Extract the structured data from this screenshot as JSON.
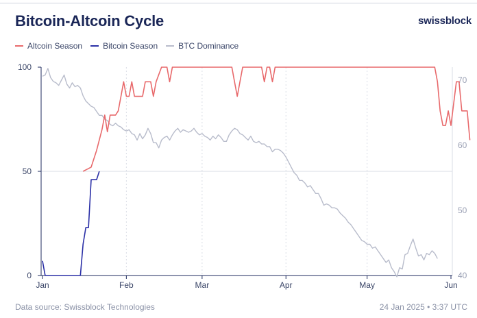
{
  "header": {
    "title": "Bitcoin-Altcoin Cycle",
    "brand": "swissblock"
  },
  "footer": {
    "source": "Data source: Swissblock Technologies",
    "timestamp": "24 Jan 2025 • 3:37 UTC"
  },
  "colors": {
    "altcoin": "#e8696b",
    "bitcoin": "#2a2fa6",
    "dominance": "#b8bccb",
    "grid": "#d9dce4",
    "axis_text": "#3b4668"
  },
  "chart_data": {
    "type": "line",
    "title": "Bitcoin-Altcoin Cycle",
    "x_tick_labels": [
      "Jan",
      "Feb",
      "Mar",
      "Apr",
      "May",
      "Jun"
    ],
    "x_tick_days": [
      0,
      31,
      59,
      90,
      120,
      151
    ],
    "x_range_days": [
      0,
      151
    ],
    "y_left": {
      "range": [
        0,
        100
      ],
      "ticks": [
        0,
        50,
        100
      ]
    },
    "y_right": {
      "range": [
        40,
        72
      ],
      "ticks": [
        40,
        50,
        60,
        70
      ]
    },
    "legend_placement": "top-left",
    "grid": "vertical dashed at month ticks, horizontal at 50",
    "series": [
      {
        "name": "Altcoin Season",
        "axis": "left",
        "points": [
          [
            15,
            50
          ],
          [
            18,
            52
          ],
          [
            20,
            60
          ],
          [
            22,
            70
          ],
          [
            23,
            77
          ],
          [
            24,
            69
          ],
          [
            25,
            77
          ],
          [
            27,
            77
          ],
          [
            28,
            79
          ],
          [
            29,
            86
          ],
          [
            30,
            93
          ],
          [
            31,
            86
          ],
          [
            32,
            86
          ],
          [
            33,
            93
          ],
          [
            34,
            86
          ],
          [
            37,
            86
          ],
          [
            38,
            93
          ],
          [
            40,
            93
          ],
          [
            41,
            86
          ],
          [
            42,
            93
          ],
          [
            44,
            100
          ],
          [
            46,
            100
          ],
          [
            47,
            93
          ],
          [
            48,
            100
          ],
          [
            70,
            100
          ],
          [
            71,
            93
          ],
          [
            72,
            86
          ],
          [
            73,
            93
          ],
          [
            74,
            100
          ],
          [
            81,
            100
          ],
          [
            82,
            93
          ],
          [
            83,
            100
          ],
          [
            84,
            100
          ],
          [
            85,
            93
          ],
          [
            86,
            100
          ],
          [
            145,
            100
          ],
          [
            146,
            93
          ],
          [
            147,
            79
          ],
          [
            148,
            72
          ],
          [
            149,
            72
          ],
          [
            150,
            79
          ],
          [
            151,
            72
          ],
          [
            153,
            93
          ],
          [
            154,
            93
          ],
          [
            155,
            79
          ],
          [
            157,
            79
          ],
          [
            158,
            65
          ]
        ]
      },
      {
        "name": "Bitcoin Season",
        "axis": "left",
        "points": [
          [
            0,
            7
          ],
          [
            1,
            0
          ],
          [
            14,
            0
          ],
          [
            15,
            15
          ],
          [
            16,
            23
          ],
          [
            17,
            23
          ],
          [
            18,
            46
          ],
          [
            20,
            46
          ],
          [
            21,
            50
          ]
        ]
      },
      {
        "name": "BTC Dominance",
        "axis": "right",
        "points": [
          [
            0,
            70.6
          ],
          [
            1,
            70.8
          ],
          [
            2,
            71.8
          ],
          [
            3,
            70.4
          ],
          [
            4,
            69.8
          ],
          [
            5,
            69.6
          ],
          [
            6,
            69.2
          ],
          [
            7,
            70.0
          ],
          [
            8,
            70.8
          ],
          [
            9,
            69.4
          ],
          [
            10,
            68.8
          ],
          [
            11,
            69.6
          ],
          [
            12,
            69.0
          ],
          [
            13,
            69.2
          ],
          [
            14,
            68.8
          ],
          [
            15,
            67.6
          ],
          [
            16,
            66.8
          ],
          [
            17,
            66.4
          ],
          [
            18,
            66.0
          ],
          [
            19,
            65.8
          ],
          [
            20,
            65.2
          ],
          [
            21,
            64.6
          ],
          [
            22,
            64.6
          ],
          [
            23,
            64.0
          ],
          [
            24,
            63.8
          ],
          [
            25,
            63.2
          ],
          [
            26,
            63.0
          ],
          [
            27,
            63.4
          ],
          [
            28,
            63.0
          ],
          [
            29,
            62.8
          ],
          [
            30,
            62.4
          ],
          [
            31,
            62.2
          ],
          [
            32,
            62.4
          ],
          [
            33,
            61.8
          ],
          [
            34,
            61.6
          ],
          [
            35,
            60.8
          ],
          [
            36,
            61.8
          ],
          [
            37,
            61.0
          ],
          [
            38,
            61.6
          ],
          [
            39,
            62.6
          ],
          [
            40,
            61.8
          ],
          [
            41,
            60.4
          ],
          [
            42,
            60.4
          ],
          [
            43,
            59.6
          ],
          [
            44,
            60.8
          ],
          [
            45,
            61.2
          ],
          [
            46,
            61.4
          ],
          [
            47,
            60.8
          ],
          [
            48,
            61.6
          ],
          [
            49,
            62.2
          ],
          [
            50,
            62.6
          ],
          [
            51,
            62.0
          ],
          [
            52,
            62.4
          ],
          [
            53,
            62.2
          ],
          [
            54,
            62.0
          ],
          [
            55,
            62.2
          ],
          [
            56,
            62.6
          ],
          [
            57,
            62.0
          ],
          [
            58,
            61.6
          ],
          [
            59,
            61.8
          ],
          [
            60,
            61.4
          ],
          [
            61,
            61.2
          ],
          [
            62,
            60.8
          ],
          [
            63,
            61.4
          ],
          [
            64,
            61.0
          ],
          [
            65,
            61.6
          ],
          [
            66,
            61.2
          ],
          [
            67,
            60.6
          ],
          [
            68,
            60.6
          ],
          [
            69,
            61.6
          ],
          [
            70,
            62.2
          ],
          [
            71,
            62.6
          ],
          [
            72,
            62.4
          ],
          [
            73,
            61.8
          ],
          [
            74,
            61.6
          ],
          [
            75,
            61.2
          ],
          [
            76,
            60.8
          ],
          [
            77,
            61.4
          ],
          [
            78,
            60.6
          ],
          [
            79,
            60.4
          ],
          [
            80,
            60.6
          ],
          [
            81,
            60.2
          ],
          [
            82,
            60.2
          ],
          [
            83,
            59.8
          ],
          [
            84,
            59.8
          ],
          [
            85,
            59.0
          ],
          [
            86,
            59.4
          ],
          [
            87,
            59.4
          ],
          [
            88,
            59.2
          ],
          [
            89,
            58.8
          ],
          [
            90,
            58.2
          ],
          [
            91,
            57.4
          ],
          [
            92,
            56.6
          ],
          [
            93,
            55.8
          ],
          [
            94,
            55.4
          ],
          [
            95,
            54.6
          ],
          [
            96,
            54.6
          ],
          [
            97,
            54.2
          ],
          [
            98,
            53.6
          ],
          [
            99,
            53.8
          ],
          [
            100,
            53.2
          ],
          [
            101,
            52.6
          ],
          [
            102,
            52.6
          ],
          [
            103,
            51.8
          ],
          [
            104,
            50.8
          ],
          [
            105,
            51.0
          ],
          [
            106,
            50.8
          ],
          [
            107,
            50.4
          ],
          [
            108,
            50.4
          ],
          [
            109,
            50.2
          ],
          [
            110,
            49.6
          ],
          [
            111,
            49.2
          ],
          [
            112,
            48.8
          ],
          [
            113,
            48.2
          ],
          [
            114,
            47.8
          ],
          [
            115,
            47.2
          ],
          [
            116,
            46.6
          ],
          [
            117,
            46.0
          ],
          [
            118,
            45.4
          ],
          [
            119,
            45.2
          ],
          [
            120,
            44.8
          ],
          [
            121,
            44.8
          ],
          [
            122,
            44.2
          ],
          [
            123,
            44.4
          ],
          [
            124,
            43.8
          ],
          [
            125,
            43.2
          ],
          [
            126,
            42.6
          ],
          [
            127,
            42.0
          ],
          [
            128,
            42.4
          ],
          [
            129,
            41.2
          ],
          [
            130,
            40.6
          ],
          [
            131,
            39.8
          ],
          [
            132,
            41.2
          ],
          [
            133,
            41.0
          ],
          [
            134,
            43.2
          ],
          [
            135,
            43.4
          ],
          [
            136,
            44.6
          ],
          [
            137,
            45.6
          ],
          [
            138,
            44.2
          ],
          [
            139,
            43.0
          ],
          [
            140,
            43.2
          ],
          [
            141,
            42.4
          ],
          [
            142,
            43.4
          ],
          [
            143,
            43.2
          ],
          [
            144,
            43.8
          ],
          [
            145,
            43.4
          ],
          [
            146,
            42.6
          ]
        ]
      }
    ]
  }
}
